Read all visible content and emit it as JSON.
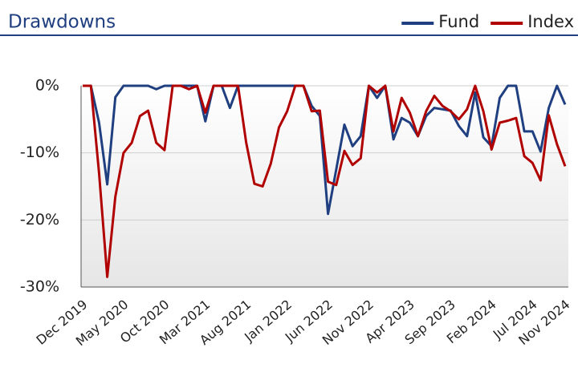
{
  "chart_data": {
    "type": "line",
    "title": "Drawdowns",
    "categories": [
      "Dec 2019",
      null,
      null,
      null,
      null,
      "May 2020",
      null,
      null,
      null,
      null,
      "Oct 2020",
      null,
      null,
      null,
      null,
      "Mar 2021",
      null,
      null,
      null,
      null,
      "Aug 2021",
      null,
      null,
      null,
      null,
      "Jan 2022",
      null,
      null,
      null,
      null,
      "Jun 2022",
      null,
      null,
      null,
      null,
      "Nov 2022",
      null,
      null,
      null,
      null,
      "Apr 2023",
      null,
      null,
      null,
      null,
      "Sep 2023",
      null,
      null,
      null,
      null,
      "Feb 2024",
      null,
      null,
      null,
      null,
      "Jul 2024",
      null,
      null,
      null,
      "Nov 2024"
    ],
    "series": [
      {
        "name": "Fund",
        "color": "#1f3f80",
        "values": [
          0,
          0,
          -5.5,
          -14.7,
          -1.7,
          0,
          0,
          0,
          0,
          -0.5,
          0,
          0,
          0,
          0,
          0,
          -5.3,
          0,
          0,
          -3.3,
          0,
          0,
          0,
          0,
          0,
          0,
          0,
          0,
          0,
          -3,
          -4.5,
          -19.1,
          -12.5,
          -5.8,
          -9,
          -7.5,
          0,
          -1.8,
          0,
          -8,
          -4.8,
          -5.5,
          -7.5,
          -4.5,
          -3.3,
          -3.5,
          -3.7,
          -6,
          -7.5,
          -1,
          -7.7,
          -9,
          -1.8,
          0,
          0,
          -6.8,
          -6.8,
          -9.8,
          -3.3,
          0,
          -2.8
        ]
      },
      {
        "name": "Index",
        "color": "#b00000",
        "values": [
          0,
          0,
          -13,
          -28.5,
          -16.5,
          -10,
          -8.5,
          -4.5,
          -3.7,
          -8.5,
          -9.6,
          0,
          0,
          -0.5,
          0,
          -4,
          0,
          0,
          0,
          0,
          -8.5,
          -14.6,
          -15,
          -11.6,
          -6.2,
          -3.8,
          0,
          0,
          -3.8,
          -3.7,
          -14.3,
          -14.8,
          -9.7,
          -11.8,
          -10.8,
          0,
          -1,
          0,
          -6.8,
          -1.8,
          -4,
          -7.5,
          -3.8,
          -1.5,
          -3,
          -3.8,
          -5,
          -3.5,
          0,
          -3.8,
          -9.5,
          -5.5,
          -5.2,
          -4.8,
          -10.5,
          -11.5,
          -14.1,
          -4.4,
          -8.7,
          -12
        ]
      }
    ],
    "ylim": [
      -30,
      0
    ],
    "yticks": [
      {
        "value": 0,
        "label": "0%"
      },
      {
        "value": -10,
        "label": "-10%"
      },
      {
        "value": -20,
        "label": "-20%"
      },
      {
        "value": -30,
        "label": "-30%"
      }
    ],
    "grid": true,
    "legend": "top-right"
  }
}
